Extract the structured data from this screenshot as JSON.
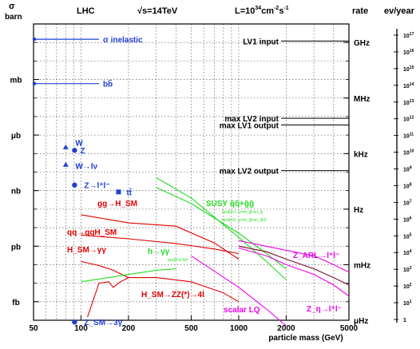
{
  "header": {
    "unit_label": "σ",
    "unit_sub": "barn",
    "machine": "LHC",
    "energy": "√s=14TeV",
    "luminosity_base": "L=10",
    "luminosity_exp": "34",
    "luminosity_unit": "cm",
    "luminosity_unit_exp": "-2",
    "luminosity_s": "s",
    "luminosity_s_exp": "-1",
    "rate_label": "rate",
    "events_label": "ev/year"
  },
  "chart_data": {
    "type": "line",
    "xlabel": "particle mass (GeV)",
    "xscale": "log",
    "xlim": [
      50,
      5000
    ],
    "yscale": "log",
    "ylim_barn": [
      1e-16,
      1
    ],
    "x_ticks": [
      {
        "value": 50,
        "label": "50"
      },
      {
        "value": 100,
        "label": "100"
      },
      {
        "value": 200,
        "label": "200"
      },
      {
        "value": 500,
        "label": "500"
      },
      {
        "value": 1000,
        "label": "1000"
      },
      {
        "value": 2000,
        "label": "2000"
      },
      {
        "value": 5000,
        "label": "5000"
      }
    ],
    "y_ticks_left": [
      {
        "value": 0.001,
        "label": "mb"
      },
      {
        "value": 1e-06,
        "label": "μb"
      },
      {
        "value": 1e-09,
        "label": "nb"
      },
      {
        "value": 1e-12,
        "label": "pb"
      },
      {
        "value": 1e-15,
        "label": "fb"
      }
    ],
    "y_ticks_rate": [
      {
        "value": 0.1,
        "label": "GHz"
      },
      {
        "value": 0.0001,
        "label": "MHz"
      },
      {
        "value": 1e-07,
        "label": "kHz"
      },
      {
        "value": 1e-10,
        "label": "Hz"
      },
      {
        "value": 1e-13,
        "label": "mHz"
      },
      {
        "value": 1e-16,
        "label": "μHz"
      }
    ],
    "events_ticks": [
      {
        "exp": "17"
      },
      {
        "exp": "16"
      },
      {
        "exp": "15"
      },
      {
        "exp": "14"
      },
      {
        "exp": "13"
      },
      {
        "exp": "12"
      },
      {
        "exp": "11"
      },
      {
        "exp": "10"
      },
      {
        "exp": "9"
      },
      {
        "exp": "8"
      },
      {
        "exp": "7"
      },
      {
        "exp": "6"
      },
      {
        "exp": "5"
      },
      {
        "exp": "4"
      },
      {
        "exp": "3"
      },
      {
        "exp": "2"
      },
      {
        "exp": "1"
      },
      {
        "exp": ""
      }
    ],
    "events_ticks_base": "10",
    "events_bottom_label": "1",
    "levels": [
      {
        "label": "σ inelastic",
        "y": 0.15,
        "x_end": 130,
        "color": "#1f3fd6"
      },
      {
        "label": "bb̄",
        "y": 0.0006,
        "x_end": 130,
        "color": "#1f3fd6"
      }
    ],
    "trigger_lines": [
      {
        "label": "LV1 input",
        "y": 0.12
      },
      {
        "label": "max LV2 input",
        "y": 8e-06
      },
      {
        "label": "max LV1 output",
        "y": 3.5e-06
      },
      {
        "label": "max LV2 output",
        "y": 1.2e-08
      }
    ],
    "points": [
      {
        "label": "W",
        "x": 80,
        "y": 2.2e-07,
        "color": "#1f3fd6",
        "marker": "triangle"
      },
      {
        "label": "Z",
        "x": 91,
        "y": 1.5e-07,
        "color": "#1f3fd6",
        "marker": "circle"
      },
      {
        "label": "W→lν",
        "x": 80,
        "y": 2.5e-08,
        "color": "#1f3fd6",
        "marker": "triangle"
      },
      {
        "label": "Z→l⁺l⁻",
        "x": 91,
        "y": 2e-09,
        "color": "#1f3fd6",
        "marker": "circle"
      },
      {
        "label": "tt̄",
        "x": 173,
        "y": 8.5e-10,
        "color": "#1f3fd6",
        "marker": "square"
      },
      {
        "label": "Z_SM→3γ",
        "x": 91,
        "y": 8e-17,
        "color": "#1f3fd6",
        "marker": "circle"
      }
    ],
    "series": [
      {
        "name": "gg→H_SM",
        "color": "#e00000",
        "x": [
          100,
          200,
          400,
          700,
          1000
        ],
        "y": [
          5e-11,
          1.8e-11,
          1.2e-11,
          1.5e-12,
          2e-13
        ]
      },
      {
        "name": "qq→qqH_SM",
        "color": "#e00000",
        "x": [
          100,
          200,
          400,
          700,
          1000
        ],
        "y": [
          4e-12,
          2.5e-12,
          1.4e-12,
          7e-13,
          4e-13
        ]
      },
      {
        "name": "H_SM→γγ",
        "color": "#e00000",
        "x": [
          100,
          130,
          160,
          200
        ],
        "y": [
          1.5e-13,
          9e-14,
          5e-14,
          2e-14
        ]
      },
      {
        "name": "H_SM→ZZ(*)→4l",
        "color": "#e00000",
        "x": [
          110,
          130,
          150,
          160,
          175,
          200,
          300,
          500,
          800,
          1000
        ],
        "y": [
          1.5e-16,
          1e-14,
          1.2e-14,
          6e-15,
          1.1e-14,
          2e-14,
          2e-14,
          1.2e-14,
          3e-15,
          1e-15
        ]
      },
      {
        "name": "h→γγ",
        "sublabel": "tanβ=2-50",
        "color": "#22dd22",
        "x": [
          100,
          150,
          200,
          300,
          400
        ],
        "y": [
          1.2e-14,
          2e-14,
          3e-14,
          5e-14,
          6e-14
        ]
      },
      {
        "name": "SUSY q̃q̃+g̃g̃",
        "sublabel": "tanβ=2, μ=m_g̃=m_q̃",
        "color": "#22dd22",
        "x": [
          300,
          500,
          1000,
          1500,
          2000
        ],
        "y": [
          5e-09,
          4e-10,
          3e-12,
          1.5e-13,
          1.5e-14
        ]
      },
      {
        "name": "SUSY q̃q̃+g̃g̃ (2)",
        "sublabel": "tanβ=2, μ=m_g̃=m_q̃/2",
        "color": "#22dd22",
        "x": [
          300,
          500,
          1000,
          1500,
          2000
        ],
        "y": [
          1.5e-09,
          2e-10,
          5e-12,
          4e-13,
          6e-14
        ]
      },
      {
        "name": "Z_ARL→l⁺l⁻",
        "color": "#ee00ee",
        "x": [
          1000,
          1500,
          2000,
          3000,
          4000,
          5000
        ],
        "y": [
          2e-12,
          1e-12,
          6e-13,
          3e-13,
          1e-13,
          4e-14
        ]
      },
      {
        "name": "Z_η→l⁺l⁻",
        "color": "#ee00ee",
        "x": [
          1000,
          1500,
          2000,
          3000,
          4000,
          5000
        ],
        "y": [
          8e-13,
          3e-13,
          1e-13,
          3e-14,
          8e-15,
          2e-15
        ]
      },
      {
        "name": "scalar LQ",
        "color": "#ee00ee",
        "x": [
          500,
          1000,
          1500,
          2000
        ],
        "y": [
          3e-13,
          6e-15,
          4e-16,
          5e-17
        ]
      },
      {
        "name": "",
        "color": "#7a1030",
        "x": [
          1000,
          1500,
          2000,
          3000,
          4000,
          5000
        ],
        "y": [
          1e-12,
          5e-13,
          2e-13,
          6e-14,
          2e-14,
          8e-15
        ]
      }
    ]
  }
}
